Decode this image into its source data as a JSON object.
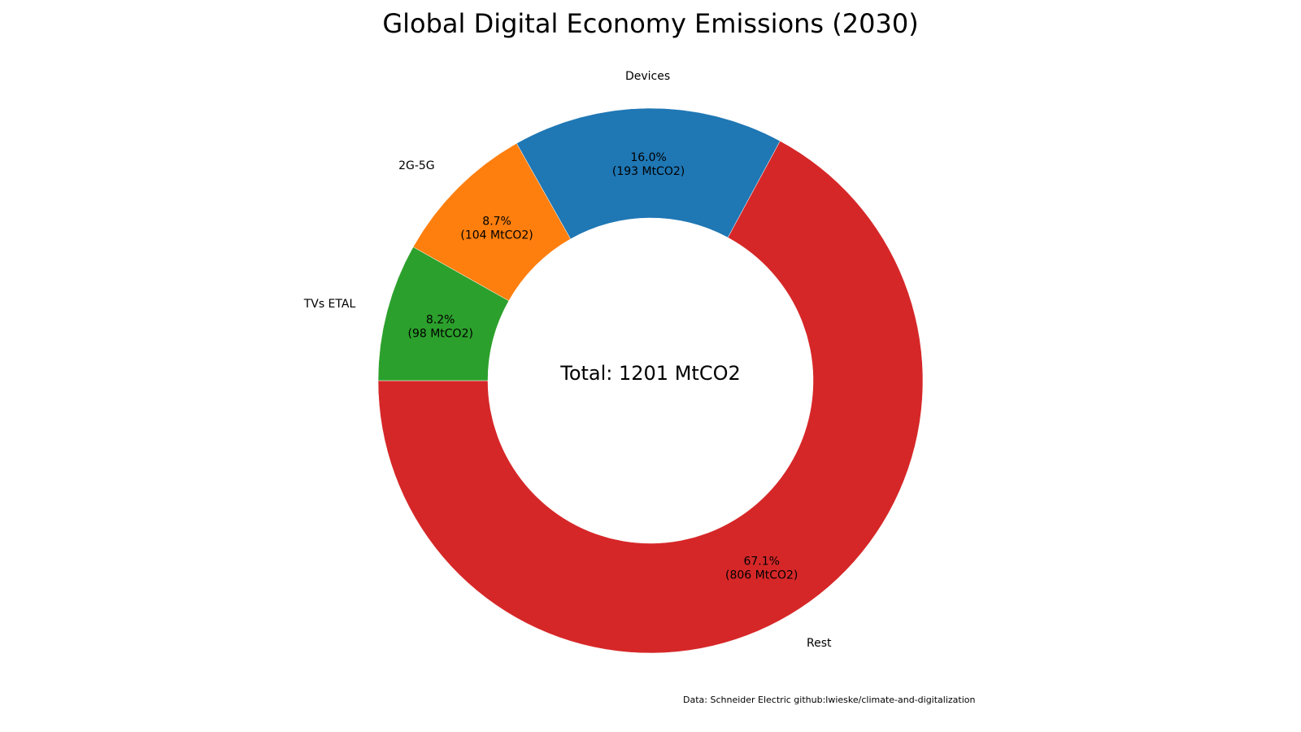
{
  "chart_data": {
    "type": "pie",
    "title": "Global Digital Economy Emissions (2030)",
    "center_label": "Total: 1201 MtCO2",
    "unit": "MtCO2",
    "slices": [
      {
        "label": "Rest",
        "value": 806,
        "pct_text": "67.1%",
        "value_text": "(806 MtCO2)",
        "color": "#d62728"
      },
      {
        "label": "Devices",
        "value": 193,
        "pct_text": "16.0%",
        "value_text": "(193 MtCO2)",
        "color": "#1f77b4"
      },
      {
        "label": "2G-5G",
        "value": 104,
        "pct_text": "8.7%",
        "value_text": "(104 MtCO2)",
        "color": "#ff7f0e"
      },
      {
        "label": "TVs ETAL",
        "value": 98,
        "pct_text": "8.2%",
        "value_text": "(98 MtCO2)",
        "color": "#2ca02c"
      }
    ],
    "source_text": "Data: Schneider Electric   github:lwieske/climate-and-digitalization"
  }
}
